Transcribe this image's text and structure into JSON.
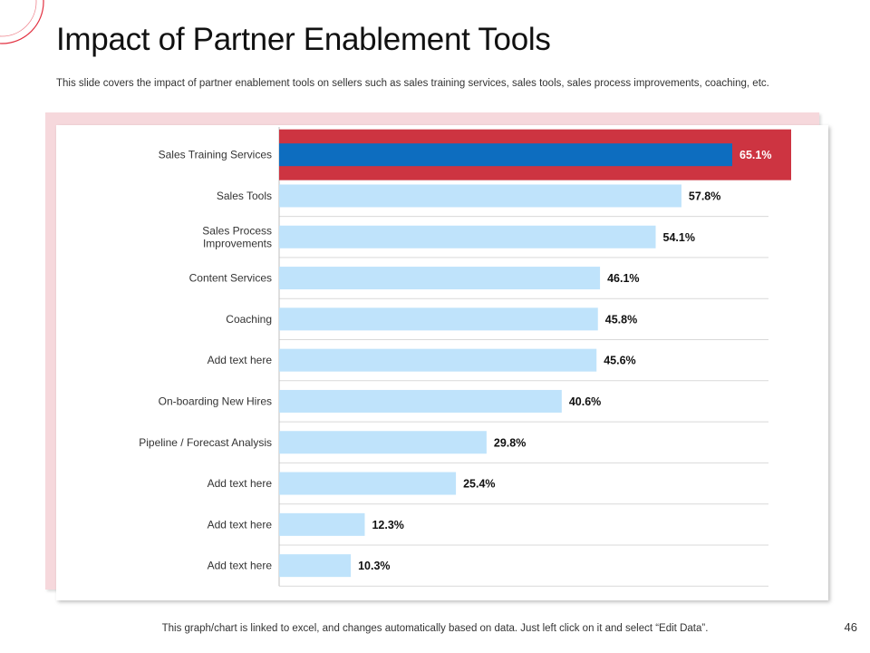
{
  "slide": {
    "title": "Impact of Partner Enablement Tools",
    "description": "This slide covers the impact of partner enablement tools on sellers such as sales training services, sales tools, sales process improvements, coaching, etc.",
    "footer": "This graph/chart is linked to excel, and changes automatically based on data.  Just left click on it and select “Edit Data”.",
    "page_number": "46"
  },
  "colors": {
    "bar_default": "#bfe3fb",
    "bar_highlight": "#0d6dbf",
    "highlight_band": "#cd3441",
    "highlight_label": "#ffffff",
    "label_default": "#111111",
    "accent_deco": "#e23040",
    "panel_back": "#f6d8dc"
  },
  "chart_data": {
    "type": "bar",
    "orientation": "horizontal",
    "categories": [
      [
        "Sales Training Services"
      ],
      [
        "Sales Tools"
      ],
      [
        "Sales Process",
        "Improvements"
      ],
      [
        "Content Services"
      ],
      [
        "Coaching"
      ],
      [
        "Add text here"
      ],
      [
        "On-boarding New Hires"
      ],
      [
        "Pipeline / Forecast Analysis"
      ],
      [
        "Add text here"
      ],
      [
        "Add text here"
      ],
      [
        "Add text here"
      ]
    ],
    "values": [
      65.1,
      57.8,
      54.1,
      46.1,
      45.8,
      45.6,
      40.6,
      29.8,
      25.4,
      12.3,
      10.3
    ],
    "data_labels": [
      "65.1%",
      "57.8%",
      "54.1%",
      "46.1%",
      "45.8%",
      "45.6%",
      "40.6%",
      "29.8%",
      "25.4%",
      "12.3%",
      "10.3%"
    ],
    "highlight_index": 0,
    "xlim": [
      0,
      70
    ],
    "grid": true,
    "legend": "none"
  }
}
